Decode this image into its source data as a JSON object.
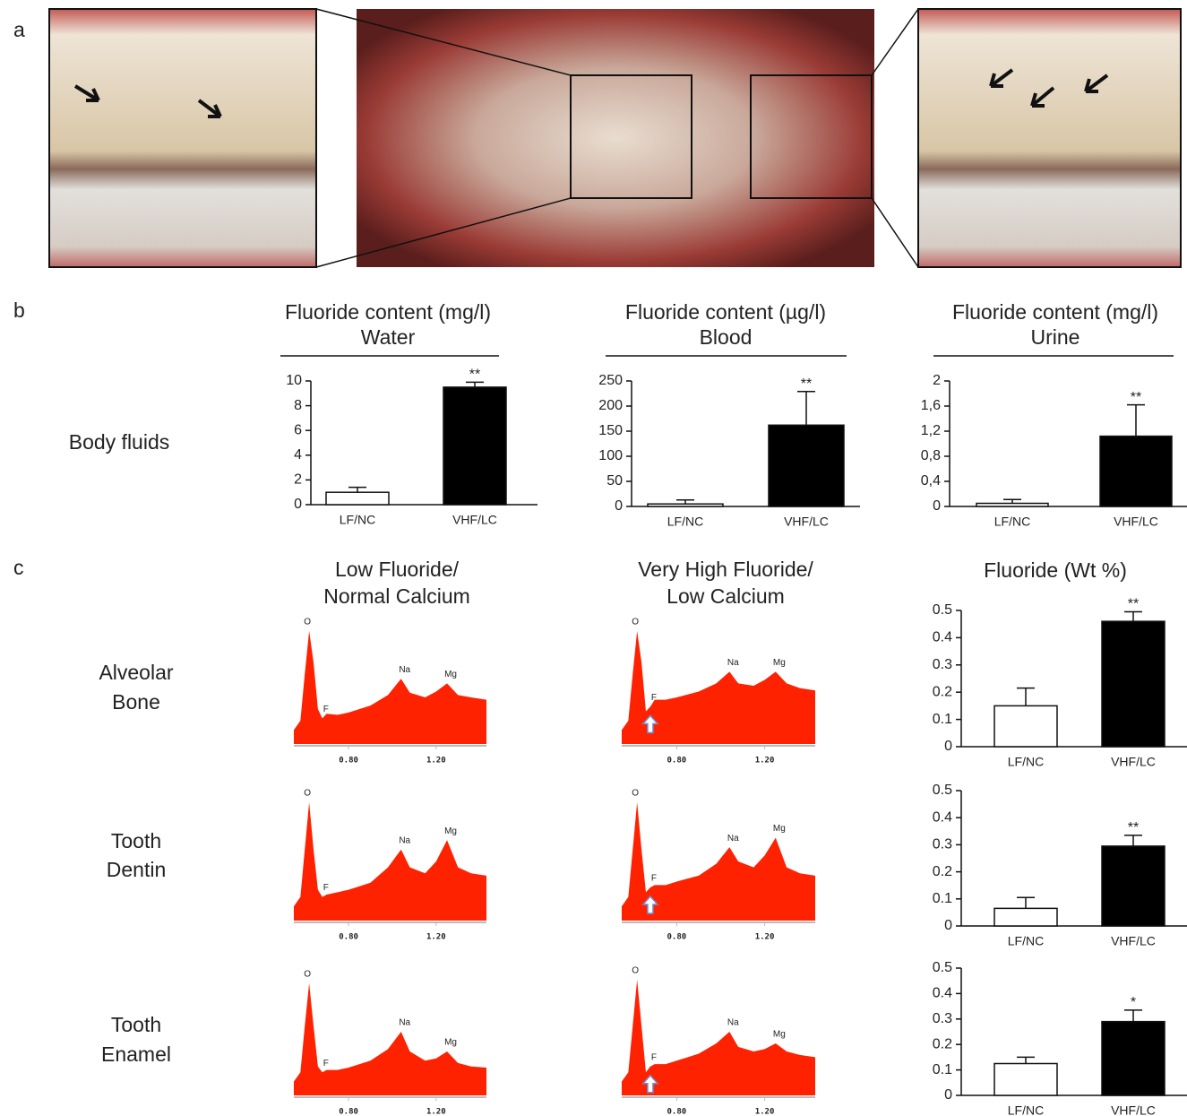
{
  "panel_labels": [
    "a",
    "b",
    "c"
  ],
  "body_fluids": "Body fluids",
  "row_labels": [
    [
      "Alveolar",
      "Bone"
    ],
    [
      "Tooth",
      "Dentin"
    ],
    [
      "Tooth",
      "Enamel"
    ]
  ],
  "column_titles": [
    [
      "Low Fluoride/",
      "Normal Calcium"
    ],
    [
      "Very High Fluoride/",
      "Low Calcium"
    ]
  ],
  "wt_title": "Fluoride (Wt %)",
  "chart_data": [
    {
      "type": "bar",
      "title": "Fluoride content (mg/l)",
      "subtitle": "Water",
      "categories": [
        "LF/NC",
        "VHF/LC"
      ],
      "values": [
        1.0,
        9.5
      ],
      "errors": [
        0.4,
        0.4
      ],
      "annotations": [
        null,
        "**"
      ],
      "colors": [
        "#ffffff",
        "#000000"
      ],
      "ylim": [
        0,
        10
      ],
      "yticks": [
        0,
        2,
        4,
        6,
        8,
        10
      ]
    },
    {
      "type": "bar",
      "title": "Fluoride content (µg/l)",
      "subtitle": "Blood",
      "categories": [
        "LF/NC",
        "VHF/LC"
      ],
      "values": [
        5,
        162
      ],
      "errors": [
        8,
        67
      ],
      "annotations": [
        null,
        "**"
      ],
      "colors": [
        "#ffffff",
        "#000000"
      ],
      "ylim": [
        0,
        250
      ],
      "yticks": [
        0,
        50,
        100,
        150,
        200,
        250
      ]
    },
    {
      "type": "bar",
      "title": "Fluoride content (mg/l)",
      "subtitle": "Urine",
      "categories": [
        "LF/NC",
        "VHF/LC"
      ],
      "values": [
        0.05,
        1.12
      ],
      "errors": [
        0.06,
        0.5
      ],
      "annotations": [
        null,
        "**"
      ],
      "colors": [
        "#ffffff",
        "#000000"
      ],
      "ylim": [
        0,
        2
      ],
      "yticks": [
        0,
        {
          "value": 0.4,
          "label": "0,4"
        },
        {
          "value": 0.8,
          "label": "0,8"
        },
        {
          "value": 1.2,
          "label": "1,2"
        },
        {
          "value": 1.6,
          "label": "1,6"
        },
        2
      ]
    },
    {
      "type": "bar",
      "categories": [
        "LF/NC",
        "VHF/LC"
      ],
      "values": [
        0.15,
        0.46
      ],
      "errors": [
        0.065,
        0.035
      ],
      "annotations": [
        null,
        "**"
      ],
      "colors": [
        "#ffffff",
        "#000000"
      ],
      "ylim": [
        0,
        0.5
      ],
      "yticks": [
        0,
        0.1,
        0.2,
        0.3,
        0.4,
        0.5
      ]
    },
    {
      "type": "bar",
      "categories": [
        "LF/NC",
        "VHF/LC"
      ],
      "values": [
        0.065,
        0.295
      ],
      "errors": [
        0.04,
        0.04
      ],
      "annotations": [
        null,
        "**"
      ],
      "colors": [
        "#ffffff",
        "#000000"
      ],
      "ylim": [
        0,
        0.5
      ],
      "yticks": [
        0,
        0.1,
        0.2,
        0.3,
        0.4,
        0.5
      ]
    },
    {
      "type": "bar",
      "categories": [
        "LF/NC",
        "VHF/LC"
      ],
      "values": [
        0.125,
        0.29
      ],
      "errors": [
        0.025,
        0.045
      ],
      "annotations": [
        null,
        "*"
      ],
      "colors": [
        "#ffffff",
        "#000000"
      ],
      "ylim": [
        0,
        0.5
      ],
      "yticks": [
        0,
        0.1,
        0.2,
        0.3,
        0.4,
        0.5
      ]
    },
    {
      "type": "area",
      "color": "#ff2200",
      "xlim": [
        0.55,
        1.43
      ],
      "ylim": [
        0,
        100
      ],
      "xticks": [
        {
          "value": 0.8,
          "label": "0.80"
        },
        {
          "value": 1.2,
          "label": "1.20"
        }
      ],
      "x": [
        0.55,
        0.58,
        0.6,
        0.62,
        0.64,
        0.66,
        0.68,
        0.7,
        0.75,
        0.8,
        0.9,
        0.98,
        1.04,
        1.08,
        1.15,
        1.2,
        1.25,
        1.3,
        1.36,
        1.43
      ],
      "values": [
        12,
        20,
        60,
        97,
        70,
        30,
        22,
        26,
        25,
        27,
        33,
        42,
        56,
        44,
        40,
        45,
        52,
        42,
        40,
        38
      ],
      "peaks": [
        {
          "label": "O",
          "x": 0.62
        },
        {
          "label": "F",
          "x": 0.68
        },
        {
          "label": "Na",
          "x": 1.04
        },
        {
          "label": "Mg",
          "x": 1.25
        }
      ]
    },
    {
      "type": "area",
      "color": "#ff2200",
      "xlim": [
        0.55,
        1.43
      ],
      "ylim": [
        0,
        100
      ],
      "xticks": [
        {
          "value": 0.8,
          "label": "0.80"
        },
        {
          "value": 1.2,
          "label": "1.20"
        }
      ],
      "x": [
        0.55,
        0.58,
        0.6,
        0.62,
        0.64,
        0.66,
        0.68,
        0.7,
        0.75,
        0.8,
        0.9,
        0.98,
        1.04,
        1.08,
        1.15,
        1.2,
        1.25,
        1.3,
        1.36,
        1.43
      ],
      "values": [
        12,
        20,
        60,
        97,
        70,
        28,
        32,
        38,
        38,
        40,
        45,
        52,
        62,
        52,
        50,
        55,
        62,
        52,
        48,
        46
      ],
      "peaks": [
        {
          "label": "O",
          "x": 0.62
        },
        {
          "label": "F",
          "x": 0.68
        },
        {
          "label": "Na",
          "x": 1.04
        },
        {
          "label": "Mg",
          "x": 1.25
        }
      ]
    },
    {
      "type": "area",
      "color": "#ff2200",
      "xlim": [
        0.55,
        1.43
      ],
      "ylim": [
        0,
        100
      ],
      "xticks": [
        {
          "value": 0.8,
          "label": "0.80"
        },
        {
          "value": 1.2,
          "label": "1.20"
        }
      ],
      "x": [
        0.55,
        0.58,
        0.6,
        0.62,
        0.64,
        0.66,
        0.68,
        0.7,
        0.75,
        0.8,
        0.9,
        0.98,
        1.04,
        1.08,
        1.15,
        1.2,
        1.25,
        1.3,
        1.36,
        1.43
      ],
      "values": [
        12,
        20,
        60,
        100,
        60,
        26,
        20,
        22,
        24,
        26,
        32,
        45,
        60,
        45,
        40,
        50,
        68,
        45,
        40,
        38
      ],
      "peaks": [
        {
          "label": "O",
          "x": 0.62
        },
        {
          "label": "F",
          "x": 0.68
        },
        {
          "label": "Na",
          "x": 1.04
        },
        {
          "label": "Mg",
          "x": 1.25
        }
      ]
    },
    {
      "type": "area",
      "color": "#ff2200",
      "xlim": [
        0.55,
        1.43
      ],
      "ylim": [
        0,
        100
      ],
      "xticks": [
        {
          "value": 0.8,
          "label": "0.80"
        },
        {
          "value": 1.2,
          "label": "1.20"
        }
      ],
      "x": [
        0.55,
        0.58,
        0.6,
        0.62,
        0.64,
        0.66,
        0.68,
        0.7,
        0.75,
        0.8,
        0.9,
        0.98,
        1.04,
        1.08,
        1.15,
        1.2,
        1.25,
        1.3,
        1.36,
        1.43
      ],
      "values": [
        12,
        20,
        60,
        100,
        60,
        24,
        28,
        30,
        30,
        33,
        38,
        48,
        62,
        50,
        45,
        55,
        70,
        45,
        40,
        38
      ],
      "peaks": [
        {
          "label": "O",
          "x": 0.62
        },
        {
          "label": "F",
          "x": 0.68
        },
        {
          "label": "Na",
          "x": 1.04
        },
        {
          "label": "Mg",
          "x": 1.25
        }
      ]
    },
    {
      "type": "area",
      "color": "#ff2200",
      "xlim": [
        0.55,
        1.43
      ],
      "ylim": [
        0,
        100
      ],
      "xticks": [
        {
          "value": 0.8,
          "label": "0.80"
        },
        {
          "value": 1.2,
          "label": "1.20"
        }
      ],
      "x": [
        0.55,
        0.58,
        0.6,
        0.62,
        0.64,
        0.66,
        0.68,
        0.7,
        0.75,
        0.8,
        0.9,
        0.98,
        1.04,
        1.08,
        1.15,
        1.2,
        1.25,
        1.3,
        1.36,
        1.43
      ],
      "values": [
        12,
        20,
        60,
        97,
        60,
        25,
        20,
        22,
        22,
        24,
        30,
        40,
        55,
        38,
        30,
        32,
        38,
        28,
        25,
        24
      ],
      "peaks": [
        {
          "label": "O",
          "x": 0.62
        },
        {
          "label": "F",
          "x": 0.68
        },
        {
          "label": "Na",
          "x": 1.04
        },
        {
          "label": "Mg",
          "x": 1.25
        }
      ]
    },
    {
      "type": "area",
      "color": "#ff2200",
      "xlim": [
        0.55,
        1.43
      ],
      "ylim": [
        0,
        100
      ],
      "xticks": [
        {
          "value": 0.8,
          "label": "0.80"
        },
        {
          "value": 1.2,
          "label": "1.20"
        }
      ],
      "x": [
        0.55,
        0.58,
        0.6,
        0.62,
        0.64,
        0.66,
        0.68,
        0.7,
        0.75,
        0.8,
        0.9,
        0.98,
        1.04,
        1.08,
        1.15,
        1.2,
        1.25,
        1.3,
        1.36,
        1.43
      ],
      "values": [
        12,
        20,
        60,
        100,
        60,
        20,
        25,
        27,
        27,
        30,
        36,
        45,
        55,
        42,
        38,
        40,
        45,
        38,
        35,
        33
      ],
      "peaks": [
        {
          "label": "O",
          "x": 0.62
        },
        {
          "label": "F",
          "x": 0.68
        },
        {
          "label": "Na",
          "x": 1.04
        },
        {
          "label": "Mg",
          "x": 1.25
        }
      ]
    }
  ]
}
